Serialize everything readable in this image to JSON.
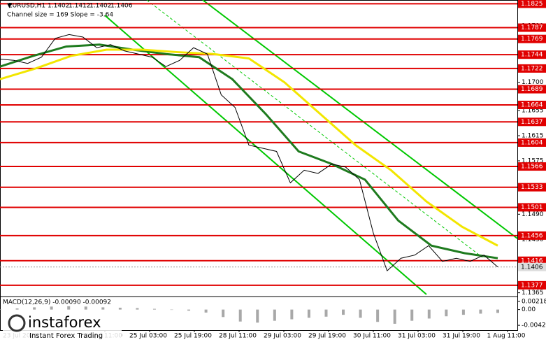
{
  "header": {
    "symbol": "EURUSD,H1",
    "ohlc": [
      1.1402,
      1.1412,
      1.1402,
      1.1406
    ],
    "channel": "Channel size = 169 Slope = -3.64"
  },
  "chart_data": {
    "type": "line",
    "ylim": [
      1.1359,
      1.1831
    ],
    "yticks": [
      {
        "value": 1.179,
        "label": "1.1790"
      },
      1.1745,
      {
        "value": 1.17,
        "label": "1.1700"
      },
      1.1655,
      1.1615,
      1.1575,
      {
        "value": 1.153,
        "label": "1.1530"
      },
      {
        "value": 1.149,
        "label": "1.1490"
      },
      {
        "value": 1.145,
        "label": "1.1450"
      },
      1.1405,
      1.1365
    ],
    "start_label": "23 Jul 2025",
    "time_labels": [
      "24 Jul 11:00",
      "25 Jul 03:00",
      "25 Jul 19:00",
      "28 Jul 11:00",
      "29 Jul 03:00",
      "29 Jul 19:00",
      "30 Jul 11:00",
      "31 Jul 03:00",
      "31 Jul 19:00",
      "1 Aug 11:00"
    ],
    "series": [
      {
        "color": "#000000",
        "values": [
          1.1737,
          1.1735,
          1.173,
          1.174,
          1.177,
          1.1776,
          1.1772,
          1.1755,
          1.176,
          1.175,
          1.1745,
          1.174,
          1.1725,
          1.1735,
          1.1755,
          1.1745,
          1.168,
          1.166,
          1.16,
          1.1595,
          1.159,
          1.154,
          1.156,
          1.1555,
          1.157,
          1.1565,
          1.1545,
          1.146,
          1.14,
          1.142,
          1.1425,
          1.144,
          1.1415,
          1.142,
          1.1415,
          1.1425,
          1.1406
        ]
      },
      {
        "color": "#1e7b1e",
        "values": [
          1.1725,
          1.1742,
          1.1757,
          1.176,
          1.1752,
          1.1745,
          1.174,
          1.1705,
          1.165,
          1.159,
          1.157,
          1.1545,
          1.148,
          1.144,
          1.1428,
          1.142
        ]
      },
      {
        "color": "#f2e600",
        "values": [
          1.1705,
          1.1722,
          1.1742,
          1.1752,
          1.1752,
          1.1748,
          1.1745,
          1.1738,
          1.17,
          1.165,
          1.16,
          1.156,
          1.151,
          1.147,
          1.144
        ]
      }
    ],
    "levels": {
      "color": "#e00000",
      "values": [
        1.1825,
        1.1787,
        1.1769,
        1.1744,
        1.1722,
        1.1689,
        1.1664,
        1.1637,
        1.1604,
        1.1566,
        1.1533,
        1.1501,
        1.1456,
        1.1416,
        1.1377
      ]
    },
    "current_price": 1.1406
  },
  "macd": {
    "type": "bar",
    "title": "MACD(12,26,9) -0.00090 -0.00092",
    "color": "#a8a8a8",
    "ylim": [
      -0.0055,
      0.0033
    ],
    "yticks": [
      0.00218,
      {
        "value": 0,
        "label": "0.00"
      },
      -0.00421
    ],
    "values": [
      0.0001,
      0.0003,
      0.0006,
      0.0008,
      0.0009,
      0.0008,
      0.0006,
      0.0005,
      0.0004,
      0.0002,
      0.0,
      -0.0003,
      -0.0008,
      -0.002,
      -0.0032,
      -0.0035,
      -0.003,
      -0.0026,
      -0.0022,
      -0.0019,
      -0.0014,
      -0.0022,
      -0.0033,
      -0.0038,
      -0.003,
      -0.0024,
      -0.0018,
      -0.0014,
      -0.0011,
      -0.0009
    ]
  },
  "watermark": {
    "brand": "instaforex",
    "tagline": "Instant Forex Trading"
  }
}
